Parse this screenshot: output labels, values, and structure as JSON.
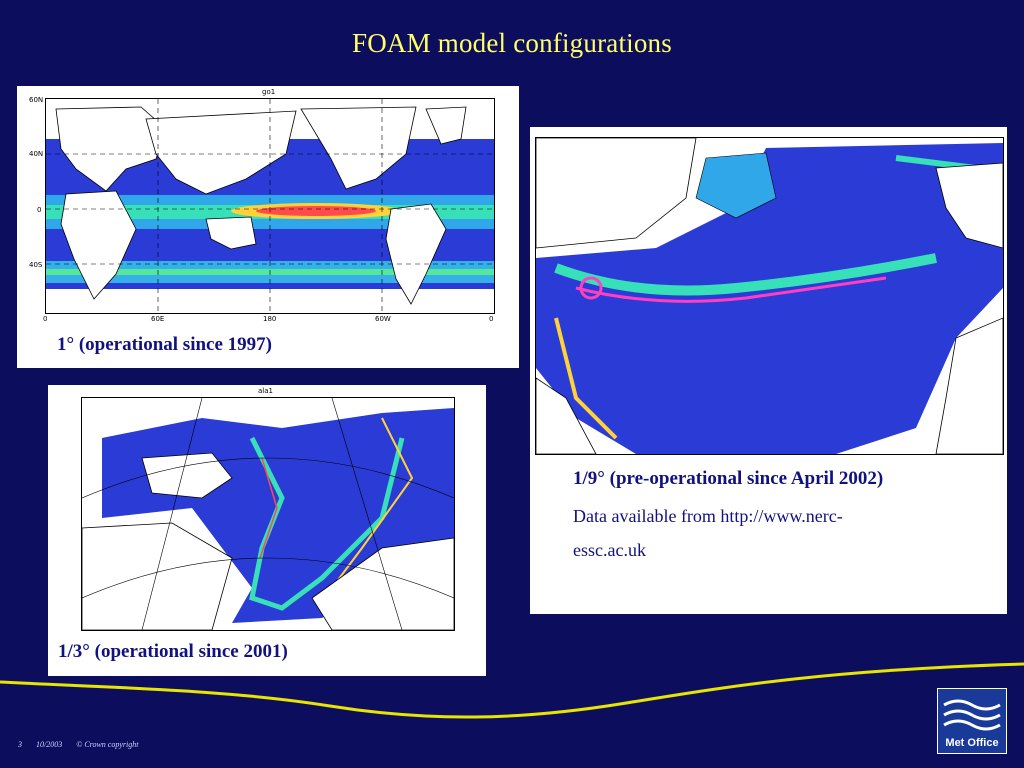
{
  "slide": {
    "title": "FOAM model configurations"
  },
  "panels": {
    "global": {
      "map_title": "go1",
      "lat_labels": [
        "60N",
        "40N",
        "0",
        "40S"
      ],
      "lon_labels": [
        "0",
        "60E",
        "180",
        "60W",
        "0"
      ],
      "caption": "1°  (operational since 1997)"
    },
    "arctic": {
      "map_title": "ala1",
      "caption": "1/3° (operational since 2001)"
    },
    "atlantic": {
      "caption": "1/9° (pre-operational since April 2002)",
      "detail_line1": "Data available from http://www.nerc-",
      "detail_line2": "essc.ac.uk"
    }
  },
  "footer": {
    "page": "3",
    "date": "10/2003",
    "copyright": "© Crown copyright"
  },
  "logo": {
    "text": "Met Office"
  },
  "colors": {
    "background": "#0d0d5e",
    "title": "#ffff66",
    "caption": "#111180",
    "wave": "#e6e600"
  }
}
